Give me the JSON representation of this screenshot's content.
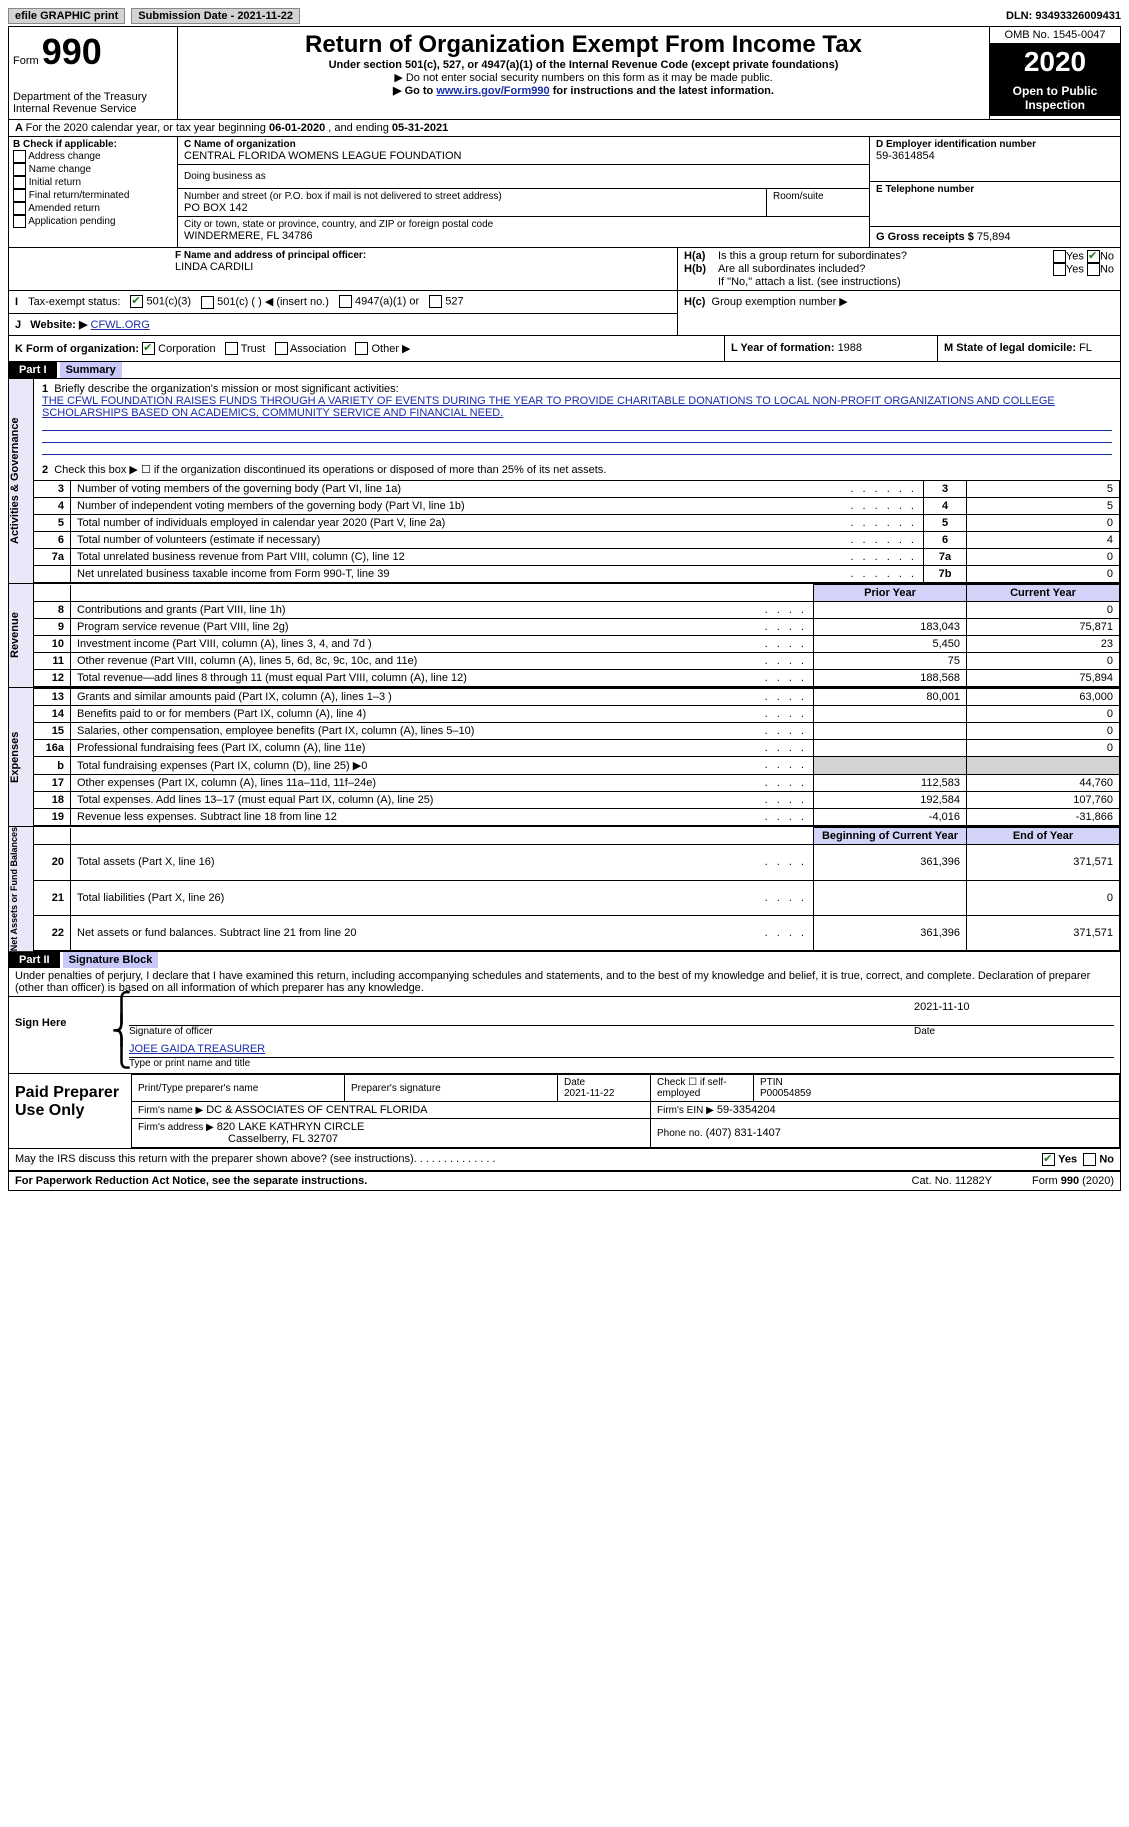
{
  "topbar": {
    "efile": "efile GRAPHIC print",
    "submission_label": "Submission Date - 2021-11-22",
    "dln_label": "DLN: 93493326009431"
  },
  "header": {
    "form_label": "Form",
    "form_no": "990",
    "dept": "Department of the Treasury Internal Revenue Service",
    "title": "Return of Organization Exempt From Income Tax",
    "subtitle": "Under section 501(c), 527, or 4947(a)(1) of the Internal Revenue Code (except private foundations)",
    "note1": "▶ Do not enter social security numbers on this form as it may be made public.",
    "note2_a": "▶ Go to ",
    "note2_link": "www.irs.gov/Form990",
    "note2_b": " for instructions and the latest information.",
    "omb": "OMB No. 1545-0047",
    "year": "2020",
    "inspection": "Open to Public Inspection"
  },
  "lineA": {
    "text_a": "For the 2020 calendar year, or tax year beginning ",
    "date1": "06-01-2020",
    "text_b": " , and ending ",
    "date2": "05-31-2021"
  },
  "boxB": {
    "label": "B Check if applicable:",
    "o1": "Address change",
    "o2": "Name change",
    "o3": "Initial return",
    "o4": "Final return/terminated",
    "o5": "Amended return",
    "o6": "Application pending"
  },
  "boxC": {
    "label": "C Name of organization",
    "name": "CENTRAL FLORIDA WOMENS LEAGUE FOUNDATION",
    "dba": "Doing business as",
    "addr_label": "Number and street (or P.O. box if mail is not delivered to street address)",
    "addr": "PO BOX 142",
    "room": "Room/suite",
    "city_label": "City or town, state or province, country, and ZIP or foreign postal code",
    "city": "WINDERMERE, FL  34786"
  },
  "boxD": {
    "label": "D Employer identification number",
    "ein": "59-3614854"
  },
  "boxE": {
    "label": "E Telephone number"
  },
  "boxG": {
    "label": "G Gross receipts $ ",
    "amount": "75,894"
  },
  "boxF": {
    "label": "F Name and address of principal officer:",
    "name": "LINDA CARDILI"
  },
  "boxH": {
    "a": "Is this a group return for subordinates?",
    "b": "Are all subordinates included?",
    "b_note": "If \"No,\" attach a list. (see instructions)",
    "c": "Group exemption number ▶",
    "yes": "Yes",
    "no": "No",
    "ha": "H(a)",
    "hb": "H(b)",
    "hc": "H(c)"
  },
  "boxI": {
    "label": "Tax-exempt status:",
    "o1": "501(c)(3)",
    "o2": "501(c) (   ) ◀ (insert no.)",
    "o3": "4947(a)(1) or",
    "o4": "527"
  },
  "boxJ": {
    "label": "Website: ▶",
    "value": "CFWL.ORG"
  },
  "boxK": {
    "label": "K Form of organization:",
    "o1": "Corporation",
    "o2": "Trust",
    "o3": "Association",
    "o4": "Other ▶"
  },
  "boxL": {
    "label": "L Year of formation: ",
    "value": "1988"
  },
  "boxM": {
    "label": "M State of legal domicile: ",
    "value": "FL"
  },
  "part1": {
    "label": "Part I",
    "title": "Summary",
    "q1": "Briefly describe the organization's mission or most significant activities:",
    "mission": "THE CFWL FOUNDATION RAISES FUNDS THROUGH A VARIETY OF EVENTS DURING THE YEAR TO PROVIDE CHARITABLE DONATIONS TO LOCAL NON-PROFIT ORGANIZATIONS AND COLLEGE SCHOLARSHIPS BASED ON ACADEMICS, COMMUNITY SERVICE AND FINANCIAL NEED.",
    "q2": "Check this box ▶ ☐ if the organization discontinued its operations or disposed of more than 25% of its net assets.",
    "lines": [
      {
        "n": "3",
        "t": "Number of voting members of the governing body (Part VI, line 1a)",
        "box": "3",
        "v": "5"
      },
      {
        "n": "4",
        "t": "Number of independent voting members of the governing body (Part VI, line 1b)",
        "box": "4",
        "v": "5"
      },
      {
        "n": "5",
        "t": "Total number of individuals employed in calendar year 2020 (Part V, line 2a)",
        "box": "5",
        "v": "0"
      },
      {
        "n": "6",
        "t": "Total number of volunteers (estimate if necessary)",
        "box": "6",
        "v": "4"
      },
      {
        "n": "7a",
        "t": "Total unrelated business revenue from Part VIII, column (C), line 12",
        "box": "7a",
        "v": "0"
      },
      {
        "n": "",
        "t": "Net unrelated business taxable income from Form 990-T, line 39",
        "box": "7b",
        "v": "0"
      }
    ],
    "col_prior": "Prior Year",
    "col_current": "Current Year",
    "revenue": [
      {
        "n": "8",
        "t": "Contributions and grants (Part VIII, line 1h)",
        "p": "",
        "c": "0"
      },
      {
        "n": "9",
        "t": "Program service revenue (Part VIII, line 2g)",
        "p": "183,043",
        "c": "75,871"
      },
      {
        "n": "10",
        "t": "Investment income (Part VIII, column (A), lines 3, 4, and 7d )",
        "p": "5,450",
        "c": "23"
      },
      {
        "n": "11",
        "t": "Other revenue (Part VIII, column (A), lines 5, 6d, 8c, 9c, 10c, and 11e)",
        "p": "75",
        "c": "0"
      },
      {
        "n": "12",
        "t": "Total revenue—add lines 8 through 11 (must equal Part VIII, column (A), line 12)",
        "p": "188,568",
        "c": "75,894"
      }
    ],
    "expenses": [
      {
        "n": "13",
        "t": "Grants and similar amounts paid (Part IX, column (A), lines 1–3 )",
        "p": "80,001",
        "c": "63,000"
      },
      {
        "n": "14",
        "t": "Benefits paid to or for members (Part IX, column (A), line 4)",
        "p": "",
        "c": "0"
      },
      {
        "n": "15",
        "t": "Salaries, other compensation, employee benefits (Part IX, column (A), lines 5–10)",
        "p": "",
        "c": "0"
      },
      {
        "n": "16a",
        "t": "Professional fundraising fees (Part IX, column (A), line 11e)",
        "p": "",
        "c": "0"
      },
      {
        "n": "b",
        "t": "Total fundraising expenses (Part IX, column (D), line 25) ▶0",
        "p": "GREY",
        "c": "GREY"
      },
      {
        "n": "17",
        "t": "Other expenses (Part IX, column (A), lines 11a–11d, 11f–24e)",
        "p": "112,583",
        "c": "44,760"
      },
      {
        "n": "18",
        "t": "Total expenses. Add lines 13–17 (must equal Part IX, column (A), line 25)",
        "p": "192,584",
        "c": "107,760"
      },
      {
        "n": "19",
        "t": "Revenue less expenses. Subtract line 18 from line 12",
        "p": "-4,016",
        "c": "-31,866"
      }
    ],
    "col_beg": "Beginning of Current Year",
    "col_end": "End of Year",
    "netassets": [
      {
        "n": "20",
        "t": "Total assets (Part X, line 16)",
        "p": "361,396",
        "c": "371,571"
      },
      {
        "n": "21",
        "t": "Total liabilities (Part X, line 26)",
        "p": "",
        "c": "0"
      },
      {
        "n": "22",
        "t": "Net assets or fund balances. Subtract line 21 from line 20",
        "p": "361,396",
        "c": "371,571"
      }
    ],
    "side_gov": "Activities & Governance",
    "side_rev": "Revenue",
    "side_exp": "Expenses",
    "side_net": "Net Assets or Fund Balances",
    "b_fundraising": "b"
  },
  "part2": {
    "label": "Part II",
    "title": "Signature Block",
    "declare": "Under penalties of perjury, I declare that I have examined this return, including accompanying schedules and statements, and to the best of my knowledge and belief, it is true, correct, and complete. Declaration of preparer (other than officer) is based on all information of which preparer has any knowledge."
  },
  "sign": {
    "side": "Sign Here",
    "sig_of_officer": "Signature of officer",
    "date_label": "Date",
    "date": "2021-11-10",
    "name": "JOEE GAIDA  TREASURER",
    "type_name": "Type or print name and title"
  },
  "preparer": {
    "side": "Paid Preparer Use Only",
    "col1": "Print/Type preparer's name",
    "col2": "Preparer's signature",
    "col3_label": "Date",
    "col3": "2021-11-22",
    "col4": "Check ☐ if self-employed",
    "col5_label": "PTIN",
    "col5": "P00054859",
    "firm_name_label": "Firm's name    ▶",
    "firm_name": "DC & ASSOCIATES OF CENTRAL FLORIDA",
    "firm_ein_label": "Firm's EIN ▶",
    "firm_ein": "59-3354204",
    "firm_addr_label": "Firm's address ▶",
    "firm_addr1": "820 LAKE KATHRYN CIRCLE",
    "firm_addr2": "Casselberry, FL  32707",
    "phone_label": "Phone no.",
    "phone": "(407) 831-1407"
  },
  "footer": {
    "discuss": "May the IRS discuss this return with the preparer shown above? (see instructions)",
    "yes": "Yes",
    "no": "No",
    "paperwork": "For Paperwork Reduction Act Notice, see the separate instructions.",
    "cat": "Cat. No. 11282Y",
    "form": "Form 990 (2020)"
  }
}
